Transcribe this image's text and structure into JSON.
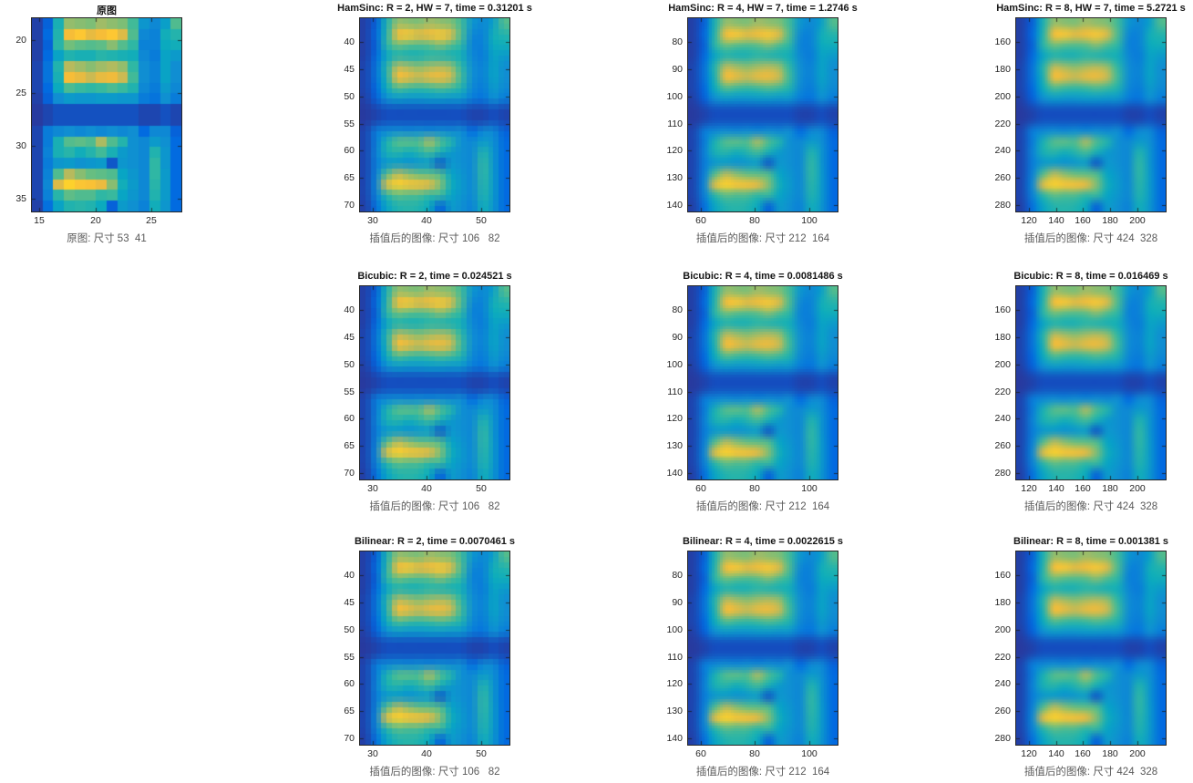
{
  "figure": {
    "background": "#ffffff",
    "box_color": "#262626",
    "tick_label_color": "#262626",
    "title_color": "#171717",
    "xlabel_color": "#595959"
  },
  "colormap": {
    "name": "parula",
    "stops": [
      [
        0.0,
        "#352a87"
      ],
      [
        0.11,
        "#0168e1"
      ],
      [
        0.24,
        "#108ed2"
      ],
      [
        0.37,
        "#07a9c1"
      ],
      [
        0.49,
        "#33b8a1"
      ],
      [
        0.62,
        "#71bf7b"
      ],
      [
        0.75,
        "#bdba5a"
      ],
      [
        0.87,
        "#f5bb39"
      ],
      [
        0.94,
        "#fec932"
      ],
      [
        1.0,
        "#f9fb0e"
      ]
    ]
  },
  "chart_data": {
    "type": "heatmap",
    "grid": {
      "rows": 18,
      "cols": 14,
      "values": [
        [
          0.04,
          0.1,
          0.42,
          0.68,
          0.66,
          0.64,
          0.7,
          0.67,
          0.64,
          0.52,
          0.28,
          0.22,
          0.32,
          0.55
        ],
        [
          0.04,
          0.12,
          0.44,
          0.88,
          0.93,
          0.84,
          0.88,
          0.93,
          0.82,
          0.55,
          0.22,
          0.2,
          0.4,
          0.45
        ],
        [
          0.04,
          0.1,
          0.46,
          0.62,
          0.58,
          0.56,
          0.58,
          0.66,
          0.56,
          0.48,
          0.2,
          0.2,
          0.38,
          0.4
        ],
        [
          0.04,
          0.12,
          0.34,
          0.44,
          0.42,
          0.42,
          0.46,
          0.44,
          0.42,
          0.4,
          0.22,
          0.18,
          0.34,
          0.3
        ],
        [
          0.05,
          0.15,
          0.44,
          0.74,
          0.7,
          0.66,
          0.7,
          0.73,
          0.68,
          0.48,
          0.24,
          0.2,
          0.34,
          0.24
        ],
        [
          0.05,
          0.15,
          0.42,
          0.88,
          0.84,
          0.78,
          0.84,
          0.86,
          0.78,
          0.52,
          0.24,
          0.2,
          0.34,
          0.24
        ],
        [
          0.05,
          0.12,
          0.38,
          0.54,
          0.5,
          0.48,
          0.5,
          0.54,
          0.5,
          0.44,
          0.22,
          0.18,
          0.3,
          0.22
        ],
        [
          0.04,
          0.1,
          0.24,
          0.3,
          0.28,
          0.28,
          0.3,
          0.3,
          0.28,
          0.28,
          0.18,
          0.15,
          0.25,
          0.18
        ],
        [
          0.03,
          0.05,
          0.07,
          0.07,
          0.07,
          0.07,
          0.07,
          0.07,
          0.07,
          0.07,
          0.05,
          0.05,
          0.07,
          0.05
        ],
        [
          0.03,
          0.05,
          0.07,
          0.07,
          0.07,
          0.07,
          0.07,
          0.07,
          0.07,
          0.07,
          0.05,
          0.05,
          0.07,
          0.05
        ],
        [
          0.05,
          0.18,
          0.22,
          0.24,
          0.22,
          0.24,
          0.22,
          0.24,
          0.22,
          0.24,
          0.12,
          0.22,
          0.22,
          0.1
        ],
        [
          0.05,
          0.18,
          0.42,
          0.56,
          0.58,
          0.55,
          0.72,
          0.55,
          0.45,
          0.25,
          0.22,
          0.3,
          0.25,
          0.12
        ],
        [
          0.05,
          0.2,
          0.42,
          0.46,
          0.4,
          0.45,
          0.52,
          0.42,
          0.3,
          0.25,
          0.22,
          0.44,
          0.28,
          0.12
        ],
        [
          0.05,
          0.18,
          0.28,
          0.3,
          0.26,
          0.28,
          0.3,
          0.08,
          0.28,
          0.25,
          0.22,
          0.48,
          0.28,
          0.12
        ],
        [
          0.05,
          0.2,
          0.55,
          0.74,
          0.66,
          0.6,
          0.58,
          0.55,
          0.35,
          0.28,
          0.22,
          0.48,
          0.3,
          0.12
        ],
        [
          0.05,
          0.22,
          0.82,
          0.95,
          0.92,
          0.9,
          0.85,
          0.66,
          0.4,
          0.3,
          0.22,
          0.46,
          0.3,
          0.12
        ],
        [
          0.05,
          0.2,
          0.46,
          0.58,
          0.55,
          0.55,
          0.48,
          0.5,
          0.35,
          0.28,
          0.22,
          0.44,
          0.3,
          0.12
        ],
        [
          0.04,
          0.14,
          0.34,
          0.44,
          0.46,
          0.44,
          0.38,
          0.1,
          0.3,
          0.25,
          0.2,
          0.4,
          0.28,
          0.12
        ]
      ]
    },
    "panels": [
      {
        "id": "original",
        "grid_pos": [
          0,
          0
        ],
        "title": "原图",
        "xlabel": "原图: 尺寸 53  41",
        "xlim": [
          14.35,
          27.65
        ],
        "ylim": [
          17.95,
          36.25
        ],
        "xticks": [
          15,
          20,
          25
        ],
        "yticks": [
          20,
          25,
          30,
          35
        ],
        "interp": "nearest",
        "block_cols": 14
      },
      {
        "id": "hamsinc-r2",
        "grid_pos": [
          0,
          1
        ],
        "title": "HamSinc: R = 2, HW = 7, time = 0.31201 s",
        "xlabel": "插值后的图像: 尺寸 106   82",
        "xlim": [
          27.6,
          55.3
        ],
        "ylim": [
          35.6,
          71.2
        ],
        "xticks": [
          30,
          40,
          50
        ],
        "yticks": [
          40,
          45,
          50,
          55,
          60,
          65,
          70
        ],
        "interp": "smooth",
        "block_cols": 28
      },
      {
        "id": "hamsinc-r4",
        "grid_pos": [
          0,
          2
        ],
        "title": "HamSinc: R = 4, HW = 7, time = 1.2746 s",
        "xlabel": "插值后的图像: 尺寸 212  164",
        "xlim": [
          55.2,
          110.6
        ],
        "ylim": [
          71.2,
          142.4
        ],
        "xticks": [
          60,
          80,
          100
        ],
        "yticks": [
          80,
          90,
          100,
          110,
          120,
          130,
          140
        ],
        "interp": "smooth",
        "block_cols": 56
      },
      {
        "id": "hamsinc-r8",
        "grid_pos": [
          0,
          3
        ],
        "title": "HamSinc: R = 8, HW = 7, time = 5.2721 s",
        "xlabel": "插值后的图像: 尺寸 424  328",
        "xlim": [
          110.4,
          221.2
        ],
        "ylim": [
          142.4,
          284.8
        ],
        "xticks": [
          120,
          140,
          160,
          180,
          200
        ],
        "yticks": [
          160,
          180,
          200,
          220,
          240,
          260,
          280
        ],
        "interp": "smooth",
        "block_cols": 112
      },
      {
        "id": "bicubic-r2",
        "grid_pos": [
          1,
          1
        ],
        "title": "Bicubic: R = 2, time = 0.024521 s",
        "xlabel": "插值后的图像: 尺寸 106   82",
        "xlim": [
          27.6,
          55.3
        ],
        "ylim": [
          35.6,
          71.2
        ],
        "xticks": [
          30,
          40,
          50
        ],
        "yticks": [
          40,
          45,
          50,
          55,
          60,
          65,
          70
        ],
        "interp": "smooth",
        "block_cols": 28
      },
      {
        "id": "bicubic-r4",
        "grid_pos": [
          1,
          2
        ],
        "title": "Bicubic: R = 4, time = 0.0081486 s",
        "xlabel": "插值后的图像: 尺寸 212  164",
        "xlim": [
          55.2,
          110.6
        ],
        "ylim": [
          71.2,
          142.4
        ],
        "xticks": [
          60,
          80,
          100
        ],
        "yticks": [
          80,
          90,
          100,
          110,
          120,
          130,
          140
        ],
        "interp": "smooth",
        "block_cols": 56
      },
      {
        "id": "bicubic-r8",
        "grid_pos": [
          1,
          3
        ],
        "title": "Bicubic: R = 8, time = 0.016469 s",
        "xlabel": "插值后的图像: 尺寸 424  328",
        "xlim": [
          110.4,
          221.2
        ],
        "ylim": [
          142.4,
          284.8
        ],
        "xticks": [
          120,
          140,
          160,
          180,
          200
        ],
        "yticks": [
          160,
          180,
          200,
          220,
          240,
          260,
          280
        ],
        "interp": "smooth",
        "block_cols": 112
      },
      {
        "id": "bilinear-r2",
        "grid_pos": [
          2,
          1
        ],
        "title": "Bilinear: R = 2, time = 0.0070461 s",
        "xlabel": "插值后的图像: 尺寸 106   82",
        "xlim": [
          27.6,
          55.3
        ],
        "ylim": [
          35.6,
          71.2
        ],
        "xticks": [
          30,
          40,
          50
        ],
        "yticks": [
          40,
          45,
          50,
          55,
          60,
          65,
          70
        ],
        "interp": "smooth",
        "block_cols": 28
      },
      {
        "id": "bilinear-r4",
        "grid_pos": [
          2,
          2
        ],
        "title": "Bilinear: R = 4, time = 0.0022615 s",
        "xlabel": "插值后的图像: 尺寸 212  164",
        "xlim": [
          55.2,
          110.6
        ],
        "ylim": [
          71.2,
          142.4
        ],
        "xticks": [
          60,
          80,
          100
        ],
        "yticks": [
          80,
          90,
          100,
          110,
          120,
          130,
          140
        ],
        "interp": "smooth",
        "block_cols": 56
      },
      {
        "id": "bilinear-r8",
        "grid_pos": [
          2,
          3
        ],
        "title": "Bilinear: R = 8, time = 0.001381 s",
        "xlabel": "插值后的图像: 尺寸 424  328",
        "xlim": [
          110.4,
          221.2
        ],
        "ylim": [
          142.4,
          284.8
        ],
        "xticks": [
          120,
          140,
          160,
          180,
          200
        ],
        "yticks": [
          160,
          180,
          200,
          220,
          240,
          260,
          280
        ],
        "interp": "smooth",
        "block_cols": 112
      }
    ]
  }
}
